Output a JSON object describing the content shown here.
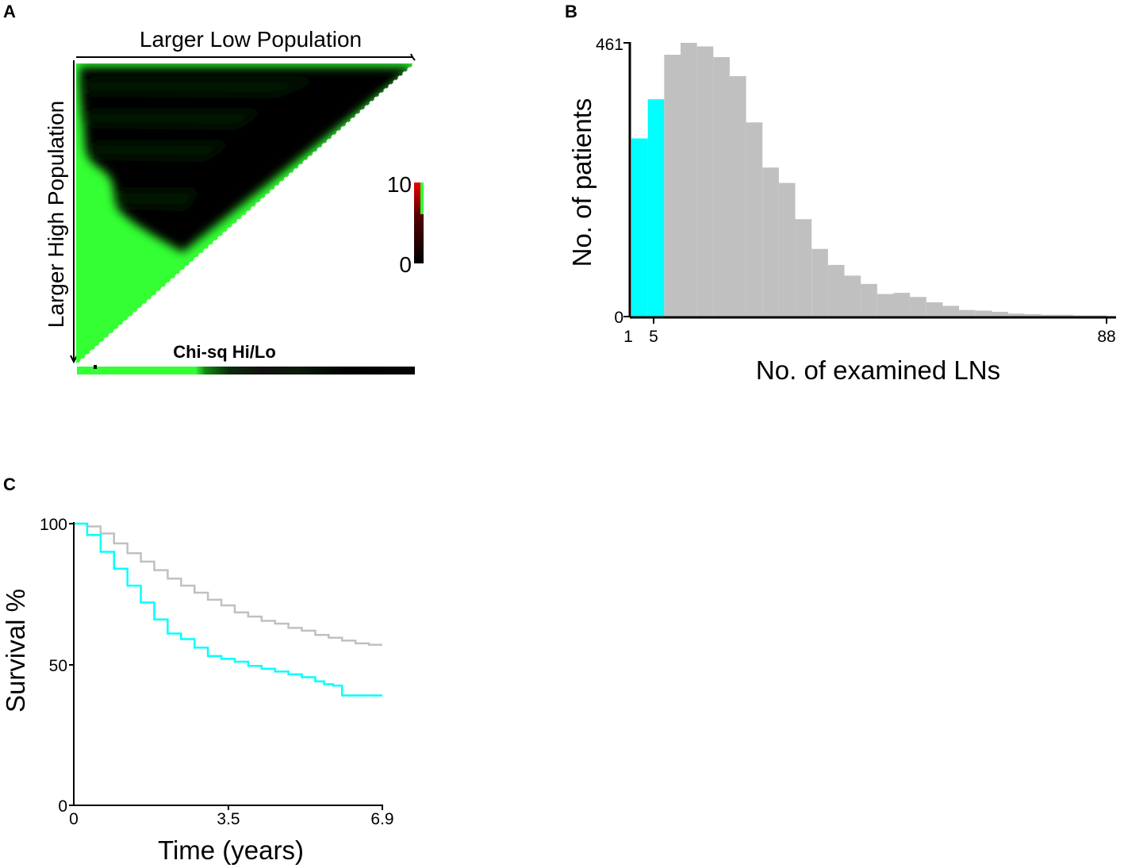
{
  "panel_letters": {
    "a": "A",
    "b": "B",
    "c": "C"
  },
  "colors": {
    "heat_high": "#33ff33",
    "heat_low": "#000000",
    "heat_mid_red": "#cc0000",
    "highlight": "#00ffff",
    "histogram_gray": "#c0c0c0",
    "curve_low": "#00ffff",
    "curve_high": "#c0c0c0"
  },
  "chart_data": [
    {
      "type": "heatmap",
      "panel": "A",
      "top_label": "Larger Low Population",
      "left_label": "Larger High Population",
      "bottom_label": "Chi-sq Hi/Lo",
      "colorbar": {
        "min_label": "0",
        "max_label": "10",
        "min": 0,
        "max": 10,
        "colors": [
          "black",
          "red",
          "green"
        ]
      }
    },
    {
      "type": "bar",
      "panel": "B",
      "xlabel": "No. of examined LNs",
      "ylabel": "No. of patients",
      "x_tick_labels": [
        "1",
        "5",
        "88"
      ],
      "y_tick_labels": [
        "0",
        "461"
      ],
      "ylim": [
        0,
        461
      ],
      "xlim": [
        1,
        88
      ],
      "bin_width": 3,
      "highlight_bins": [
        0,
        1
      ],
      "values": [
        300,
        366,
        441,
        461,
        455,
        437,
        405,
        327,
        251,
        225,
        164,
        114,
        87,
        69,
        55,
        38,
        40,
        33,
        24,
        18,
        11,
        10,
        8,
        5,
        4,
        3,
        3,
        2,
        2
      ]
    },
    {
      "type": "line",
      "panel": "C",
      "xlabel": "Time (years)",
      "ylabel": "Survival %",
      "x_tick_labels": [
        "0",
        "3.5",
        "6.9"
      ],
      "y_tick_labels": [
        "0",
        "50",
        "100"
      ],
      "xlim": [
        0,
        6.9
      ],
      "ylim": [
        0,
        100
      ],
      "series": [
        {
          "color": "#00ffff",
          "x": [
            0,
            0.3,
            0.6,
            0.9,
            1.2,
            1.5,
            1.8,
            2.1,
            2.4,
            2.7,
            3.0,
            3.3,
            3.6,
            3.9,
            4.2,
            4.5,
            4.8,
            5.1,
            5.4,
            5.6,
            5.8,
            6.0,
            6.3,
            6.6,
            6.9
          ],
          "y": [
            100,
            96,
            90,
            84,
            78,
            72,
            66,
            61,
            59,
            56,
            53,
            52,
            51,
            49.5,
            48.5,
            47.5,
            46.5,
            45.5,
            44,
            43,
            42.5,
            39,
            39,
            39,
            39
          ]
        },
        {
          "color": "#c0c0c0",
          "x": [
            0,
            0.3,
            0.6,
            0.9,
            1.2,
            1.5,
            1.8,
            2.1,
            2.4,
            2.7,
            3.0,
            3.3,
            3.6,
            3.9,
            4.2,
            4.5,
            4.8,
            5.1,
            5.4,
            5.7,
            6.0,
            6.3,
            6.6,
            6.9
          ],
          "y": [
            100,
            99,
            96.5,
            93,
            89.5,
            86.5,
            83.5,
            80.5,
            78,
            75.5,
            73,
            71,
            68.5,
            67,
            65.5,
            64.5,
            63,
            62,
            60.5,
            59.5,
            58.5,
            57.5,
            57,
            57
          ]
        }
      ]
    }
  ]
}
